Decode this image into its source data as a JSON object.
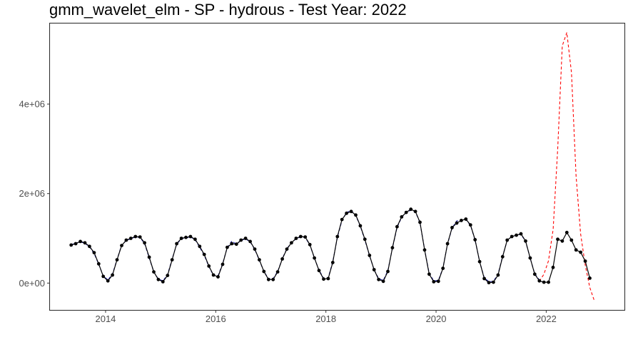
{
  "chart_data": {
    "type": "line",
    "title": "gmm_wavelet_elm - SP - hydrous - Test Year: 2022",
    "xlabel": "",
    "ylabel": "",
    "xlim": [
      2012.99,
      2023.42
    ],
    "ylim": [
      -600000,
      5800000
    ],
    "x_ticks": [
      2014,
      2016,
      2018,
      2020,
      2022
    ],
    "x_tick_labels": [
      "2014",
      "2016",
      "2018",
      "2020",
      "2022"
    ],
    "y_ticks": [
      0,
      2000000,
      4000000
    ],
    "y_tick_labels": [
      "0e+00",
      "2e+06",
      "4e+06"
    ],
    "grid": false,
    "legend": "none",
    "colors": {
      "actual": "#000000",
      "fitted": "#1a1aa6",
      "forecast": "#ff0000"
    },
    "series": [
      {
        "style": "solid-points",
        "x_start": 2013.375,
        "x_step": 0.083333,
        "values": [
          850000,
          880000,
          930000,
          900000,
          820000,
          680000,
          430000,
          150000,
          50000,
          180000,
          520000,
          840000,
          960000,
          1000000,
          1040000,
          1030000,
          900000,
          580000,
          250000,
          80000,
          30000,
          170000,
          520000,
          880000,
          1000000,
          1020000,
          1040000,
          980000,
          820000,
          640000,
          380000,
          180000,
          140000,
          420000,
          800000,
          880000,
          870000,
          960000,
          1000000,
          930000,
          760000,
          520000,
          260000,
          80000,
          80000,
          250000,
          540000,
          760000,
          900000,
          1000000,
          1040000,
          1030000,
          860000,
          560000,
          280000,
          90000,
          100000,
          460000,
          1040000,
          1420000,
          1560000,
          1600000,
          1520000,
          1280000,
          980000,
          620000,
          300000,
          80000,
          40000,
          260000,
          790000,
          1260000,
          1480000,
          1580000,
          1650000,
          1600000,
          1360000,
          740000,
          200000,
          30000,
          40000,
          330000,
          880000,
          1240000,
          1340000,
          1400000,
          1430000,
          1300000,
          970000,
          480000,
          100000,
          10000,
          20000,
          180000,
          590000,
          960000,
          1040000,
          1070000,
          1100000,
          940000,
          560000,
          200000,
          50000,
          20000,
          20000,
          350000,
          980000,
          940000,
          1130000,
          960000,
          740000,
          690000,
          490000,
          110000
        ]
      },
      {
        "style": "dashed",
        "x_start": 2013.375,
        "x_step": 0.083333,
        "values": [
          860000,
          890000,
          920000,
          890000,
          810000,
          660000,
          420000,
          160000,
          70000,
          200000,
          530000,
          850000,
          950000,
          990000,
          1030000,
          1020000,
          880000,
          560000,
          250000,
          90000,
          50000,
          190000,
          540000,
          870000,
          990000,
          1010000,
          1030000,
          970000,
          800000,
          620000,
          370000,
          170000,
          160000,
          440000,
          790000,
          940000,
          870000,
          950000,
          990000,
          920000,
          750000,
          510000,
          260000,
          100000,
          100000,
          260000,
          550000,
          770000,
          900000,
          990000,
          1030000,
          1020000,
          850000,
          560000,
          290000,
          110000,
          120000,
          480000,
          1020000,
          1400000,
          1580000,
          1620000,
          1510000,
          1270000,
          960000,
          610000,
          300000,
          100000,
          60000,
          280000,
          780000,
          1240000,
          1470000,
          1570000,
          1630000,
          1590000,
          1350000,
          750000,
          220000,
          50000,
          60000,
          340000,
          870000,
          1230000,
          1390000,
          1400000,
          1420000,
          1290000,
          960000,
          480000,
          120000,
          30000,
          40000,
          200000,
          600000,
          950000,
          1040000,
          1070000,
          1090000,
          930000,
          560000,
          210000,
          70000
        ]
      },
      {
        "style": "dashed",
        "x_start": 2021.875,
        "x_step": 0.083333,
        "values": [
          40000,
          200000,
          500000,
          1200000,
          3000000,
          5300000,
          5600000,
          4700000,
          2400000,
          1100000,
          400000,
          -100000,
          -400000
        ]
      }
    ]
  }
}
